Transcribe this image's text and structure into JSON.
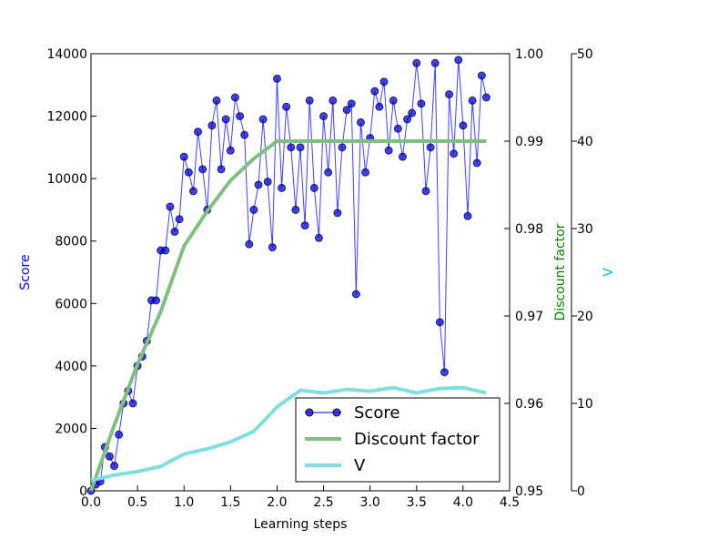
{
  "chart_data": {
    "type": "line",
    "xlabel": "Learning steps",
    "ylabel": "Score",
    "y2label": "Discount factor",
    "y3label": "V",
    "xlim": [
      0,
      4.5
    ],
    "xticks": [
      {
        "value": 0,
        "label": "0.0"
      },
      0.5,
      {
        "value": 1,
        "label": "1.0"
      },
      1.5,
      {
        "value": 2,
        "label": "2.0"
      },
      2.5,
      {
        "value": 3,
        "label": "3.0"
      },
      3.5,
      {
        "value": 4,
        "label": "4.0"
      },
      4.5
    ],
    "ylim": [
      0,
      14000
    ],
    "yticks": [
      0,
      2000,
      4000,
      6000,
      8000,
      10000,
      12000,
      14000
    ],
    "y2lim": [
      0.95,
      1.0
    ],
    "y2ticks": [
      0.95,
      0.96,
      0.97,
      0.98,
      0.99,
      {
        "value": 1.0,
        "label": "1.00"
      }
    ],
    "y3lim": [
      0,
      50
    ],
    "y3ticks": [
      0,
      10,
      20,
      30,
      40,
      50
    ],
    "legend": "lower right",
    "series": [
      {
        "name": "Score",
        "color": "#0000ff",
        "axis": "y",
        "marker": true,
        "x": [
          0,
          0.05,
          0.1,
          0.15,
          0.2,
          0.25,
          0.3,
          0.35,
          0.4,
          0.45,
          0.5,
          0.55,
          0.6,
          0.65,
          0.7,
          0.75,
          0.8,
          0.85,
          0.9,
          0.95,
          1.0,
          1.05,
          1.1,
          1.15,
          1.2,
          1.25,
          1.3,
          1.35,
          1.4,
          1.45,
          1.5,
          1.55,
          1.6,
          1.65,
          1.7,
          1.75,
          1.8,
          1.85,
          1.9,
          1.95,
          2.0,
          2.05,
          2.1,
          2.15,
          2.2,
          2.25,
          2.3,
          2.35,
          2.4,
          2.45,
          2.5,
          2.55,
          2.6,
          2.65,
          2.7,
          2.75,
          2.8,
          2.85,
          2.9,
          2.95,
          3.0,
          3.05,
          3.1,
          3.15,
          3.2,
          3.25,
          3.3,
          3.35,
          3.4,
          3.45,
          3.5,
          3.55,
          3.6,
          3.65,
          3.7,
          3.75,
          3.8,
          3.85,
          3.9,
          3.95,
          4.0,
          4.05,
          4.1,
          4.15,
          4.2,
          4.25
        ],
        "values": [
          0,
          200,
          300,
          1400,
          1100,
          800,
          1800,
          2800,
          3200,
          2800,
          4000,
          4300,
          4800,
          6100,
          6100,
          7700,
          7700,
          9100,
          8300,
          8700,
          10700,
          10200,
          9600,
          11500,
          10300,
          9000,
          11700,
          12500,
          10300,
          11900,
          10900,
          12600,
          12000,
          11400,
          7900,
          9000,
          9800,
          11900,
          9900,
          7800,
          13200,
          9700,
          12300,
          11000,
          9000,
          11000,
          8500,
          12500,
          9700,
          8100,
          12000,
          10200,
          12500,
          8900,
          11000,
          12200,
          12400,
          6300,
          11800,
          10200,
          11300,
          12800,
          12300,
          13100,
          10900,
          12500,
          11600,
          10700,
          11900,
          12100,
          13700,
          12400,
          9600,
          11000,
          13700,
          5400,
          3800,
          12700,
          10800,
          13800,
          11700,
          8800,
          12500,
          10500,
          13300,
          12600
        ]
      },
      {
        "name": "Discount factor",
        "color": "#7fbf7f",
        "axis": "y2",
        "marker": false,
        "x": [
          0,
          0.25,
          0.5,
          0.75,
          1.0,
          1.25,
          1.5,
          1.75,
          2.0,
          2.25,
          2.5,
          2.75,
          3.0,
          3.25,
          3.5,
          3.75,
          4.0,
          4.25
        ],
        "values": [
          0.95,
          0.9575,
          0.9645,
          0.9705,
          0.978,
          0.982,
          0.9855,
          0.988,
          0.99,
          0.99,
          0.99,
          0.99,
          0.99,
          0.99,
          0.99,
          0.99,
          0.99,
          0.99
        ]
      },
      {
        "name": "V",
        "color": "#7fdfdf",
        "axis": "y3",
        "marker": false,
        "x": [
          0,
          0.25,
          0.5,
          0.75,
          1.0,
          1.25,
          1.5,
          1.75,
          2.0,
          2.25,
          2.5,
          2.75,
          3.0,
          3.25,
          3.5,
          3.75,
          4.0,
          4.25
        ],
        "values": [
          1.2,
          1.8,
          2.2,
          2.8,
          4.2,
          4.8,
          5.6,
          6.8,
          9.6,
          11.5,
          11.2,
          11.6,
          11.4,
          11.8,
          11.2,
          11.7,
          11.8,
          11.2
        ]
      }
    ]
  }
}
